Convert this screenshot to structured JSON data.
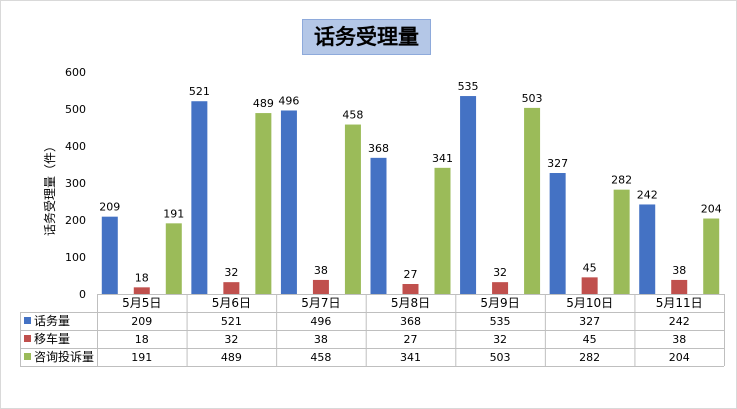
{
  "chart_data": {
    "type": "bar",
    "title": "话务受理量",
    "ylabel": "话务受理量（件）",
    "xlabel": "",
    "ylim": [
      0,
      600
    ],
    "yticks": [
      0,
      100,
      200,
      300,
      400,
      500,
      600
    ],
    "categories": [
      "5月5日",
      "5月6日",
      "5月7日",
      "5月8日",
      "5月9日",
      "5月10日",
      "5月11日"
    ],
    "series": [
      {
        "name": "话务量",
        "color": "#4472c4",
        "values": [
          209,
          521,
          496,
          368,
          535,
          327,
          242
        ]
      },
      {
        "name": "移车量",
        "color": "#c0504d",
        "values": [
          18,
          32,
          38,
          27,
          32,
          45,
          38
        ]
      },
      {
        "name": "咨询投诉量",
        "color": "#9bbb59",
        "values": [
          191,
          489,
          458,
          341,
          503,
          282,
          204
        ]
      }
    ],
    "grid": false,
    "legend": "data-table"
  }
}
